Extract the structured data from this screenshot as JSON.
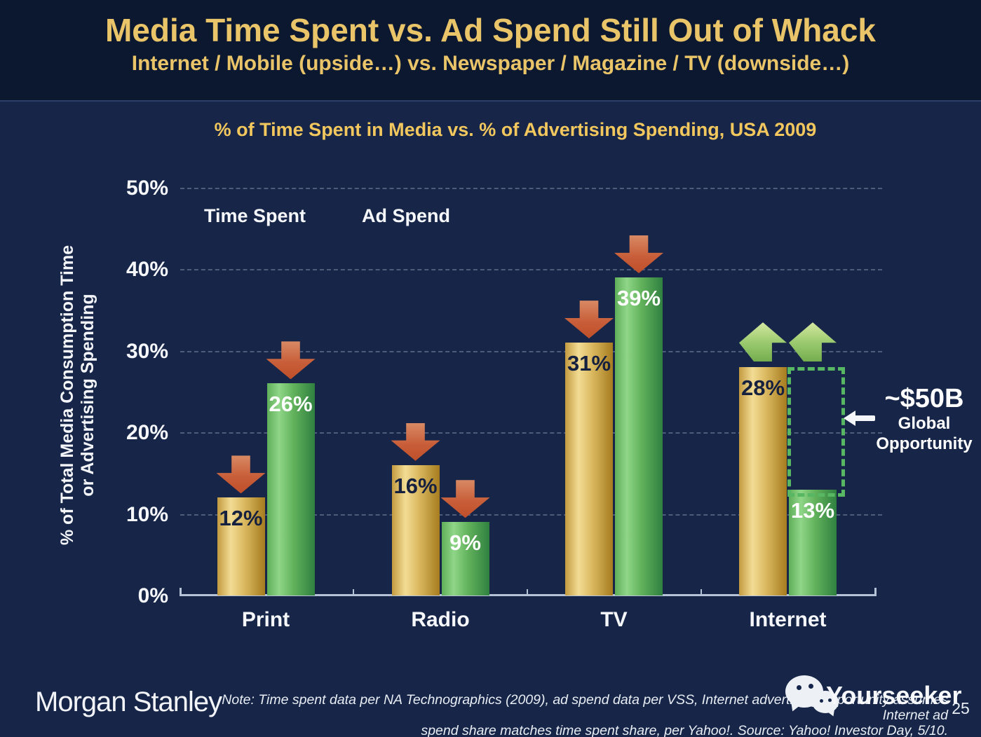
{
  "slide": {
    "title": "Media Time Spent vs. Ad Spend Still Out of Whack",
    "subtitle": "Internet / Mobile (upside…) vs. Newspaper / Magazine / TV (downside…)"
  },
  "chart": {
    "title": "% of Time Spent in Media vs. % of Advertising Spending, USA 2009",
    "y_axis_label_line1": "% of Total Media Consumption Time",
    "y_axis_label_line2": "or Advertising Spending",
    "y_ticks": [
      "0%",
      "10%",
      "20%",
      "30%",
      "40%",
      "50%"
    ],
    "legend": [
      {
        "label": "Time Spent",
        "color": "#d9a83f"
      },
      {
        "label": "Ad Spend",
        "color": "#4aa556"
      }
    ]
  },
  "chart_data": {
    "type": "bar",
    "title": "% of Time Spent in Media vs. % of Advertising Spending, USA 2009",
    "categories": [
      "Print",
      "Radio",
      "TV",
      "Internet"
    ],
    "series": [
      {
        "name": "Time Spent",
        "values": [
          12,
          16,
          31,
          28
        ],
        "color": "#d9a83f"
      },
      {
        "name": "Ad Spend",
        "values": [
          26,
          9,
          39,
          13
        ],
        "color": "#4aa556"
      }
    ],
    "arrows": [
      "down",
      "down",
      "down",
      "up"
    ],
    "arrow_down_color": "#c85f3a",
    "arrow_up_color": "#9ccb70",
    "opportunity_box_color": "#57b763",
    "xlabel": "",
    "ylabel": "% of Total Media Consumption Time or Advertising Spending",
    "ylim": [
      0,
      50
    ],
    "grid": true,
    "legend_position": "top-left",
    "annotation": {
      "value": "~$50B",
      "line1": "Global",
      "line2": "Opportunity",
      "target": "Internet"
    }
  },
  "footer": {
    "brand": "Morgan Stanley",
    "note_line1": "Note: Time spent data per NA Technographics (2009), ad spend data per VSS, Internet advertising opportunity assumes Internet ad",
    "note_line2": "spend share matches time spent share, per Yahoo!. Source: Yahoo! Investor Day, 5/10.",
    "watermark": "Yourseeker",
    "page_number": "25"
  }
}
